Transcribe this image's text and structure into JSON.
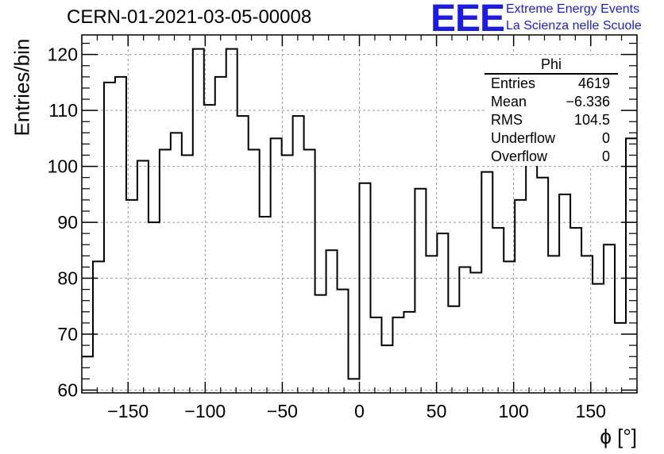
{
  "title": "CERN-01-2021-03-05-00008",
  "logo": {
    "mark": "EEE",
    "line1": "Extreme Energy Events",
    "line2": "La Scienza nelle Scuole",
    "color": "#1a1aee"
  },
  "stats": {
    "name": "Phi",
    "rows": [
      {
        "label": "Entries",
        "value": "4619"
      },
      {
        "label": "Mean",
        "value": "−6.336"
      },
      {
        "label": "RMS",
        "value": "104.5"
      },
      {
        "label": "Underflow",
        "value": "0"
      },
      {
        "label": "Overflow",
        "value": "0"
      }
    ]
  },
  "chart_data": {
    "type": "bar",
    "histogram": true,
    "xlabel": "ϕ [°]",
    "ylabel": "Entries/bin",
    "xlim": [
      -180,
      180
    ],
    "ylim": [
      59.5,
      123.5
    ],
    "bin_width": 7.2,
    "x_ticks": [
      -150,
      -100,
      -50,
      0,
      50,
      100,
      150
    ],
    "x_tick_labels": [
      "−150",
      "−100",
      "−50",
      "0",
      "50",
      "100",
      "150"
    ],
    "y_ticks": [
      60,
      70,
      80,
      90,
      100,
      110,
      120
    ],
    "y_tick_labels": [
      "60",
      "70",
      "80",
      "90",
      "100",
      "110",
      "120"
    ],
    "grid": true,
    "values": [
      66,
      83,
      115,
      116,
      94,
      101,
      90,
      103,
      106,
      102,
      121,
      111,
      116,
      121,
      109,
      103,
      91,
      105,
      102,
      109,
      103,
      77,
      85,
      78,
      62,
      97,
      73,
      68,
      73,
      74,
      96,
      84,
      88,
      75,
      82,
      81,
      99,
      89,
      83,
      94,
      102,
      98,
      84,
      95,
      89,
      84,
      79,
      86,
      72,
      105
    ]
  }
}
